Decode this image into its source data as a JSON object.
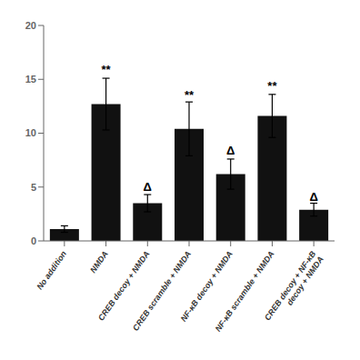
{
  "chart_data": {
    "type": "bar",
    "categories": [
      "No addition",
      "NMDA",
      "CREB decoy + NMDA",
      "CREB scramble + NMDA",
      "NF-κB decoy + NMDA",
      "NF-κB scramble + NMDA",
      "CREB decoy + NF-κB\ndecoy + NMDA"
    ],
    "values": [
      1.1,
      12.7,
      3.5,
      10.4,
      6.2,
      11.6,
      2.9
    ],
    "errors": [
      0.3,
      2.4,
      0.8,
      2.5,
      1.4,
      2.0,
      0.6
    ],
    "color": "#111111",
    "ylim": [
      0,
      20
    ],
    "yticks": [
      0,
      5,
      10,
      15,
      20
    ],
    "grid": false,
    "annotations": [
      {
        "category": "NMDA",
        "text": "**",
        "y": 15.5
      },
      {
        "category": "CREB decoy + NMDA",
        "text": "Δ",
        "y": 4.6
      },
      {
        "category": "CREB scramble + NMDA",
        "text": "**",
        "y": 13.2
      },
      {
        "category": "NF-κB decoy + NMDA",
        "text": "Δ",
        "y": 8.0
      },
      {
        "category": "NF-κB scramble + NMDA",
        "text": "**",
        "y": 14.0
      },
      {
        "category": "CREB decoy + NF-κB\ndecoy + NMDA",
        "text": "Δ",
        "y": 3.7
      }
    ]
  }
}
